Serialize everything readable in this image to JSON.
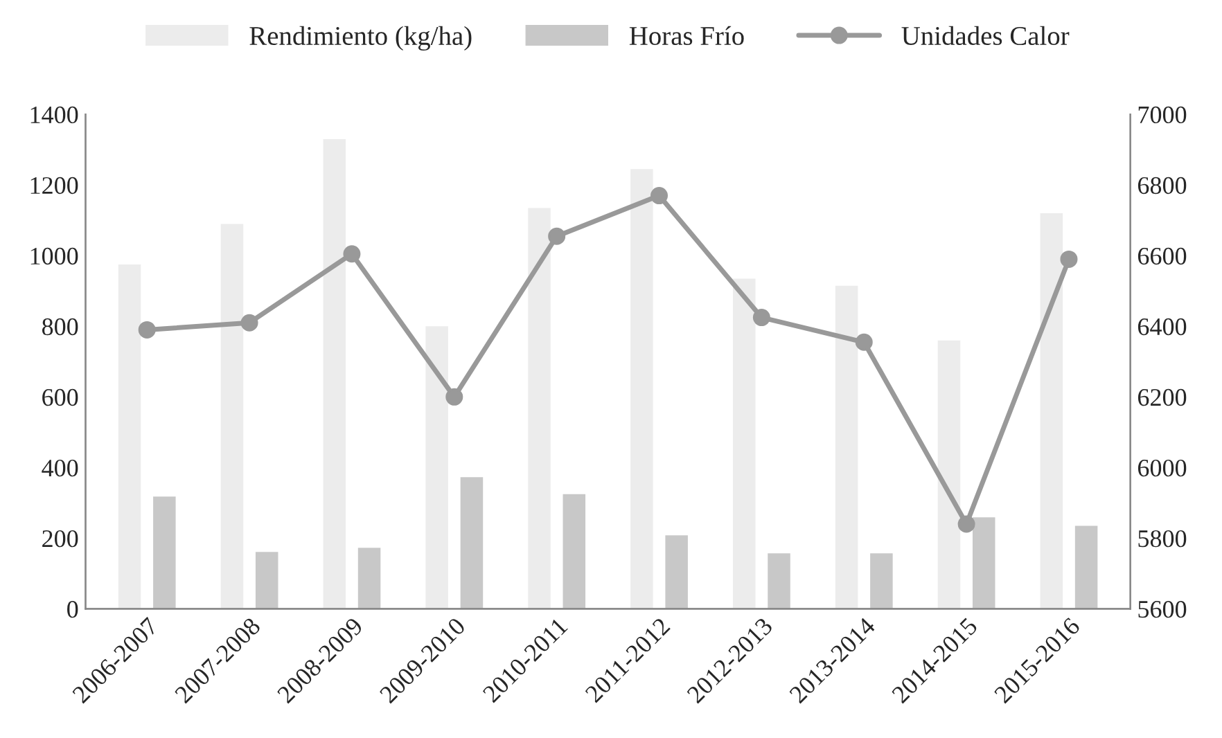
{
  "chart_data": {
    "type": "bar",
    "categories": [
      "2006-2007",
      "2007-2008",
      "2008-2009",
      "2009-2010",
      "2010-2011",
      "2011-2012",
      "2012-2013",
      "2013-2014",
      "2014-2015",
      "2015-2016"
    ],
    "series": [
      {
        "name": "Rendimiento (kg/ha)",
        "color": "#ececec",
        "values": [
          975,
          1090,
          1330,
          800,
          1135,
          1245,
          935,
          915,
          760,
          1120
        ]
      },
      {
        "name": "Horas Frío",
        "color": "#c8c8c8",
        "values": [
          318,
          161,
          173,
          373,
          325,
          208,
          157,
          157,
          259,
          235
        ]
      },
      {
        "name": "Unidades Calor",
        "type": "line",
        "axis": "y2",
        "color": "#999999",
        "values": [
          6390,
          6410,
          6605,
          6200,
          6655,
          6770,
          6425,
          6355,
          5840,
          6590
        ]
      }
    ],
    "ylim": [
      0,
      1400
    ],
    "yticks": [
      0,
      200,
      400,
      600,
      800,
      1000,
      1200,
      1400
    ],
    "y2lim": [
      5600,
      7000
    ],
    "y2ticks": [
      5600,
      5800,
      6000,
      6200,
      6400,
      6600,
      6800,
      7000
    ],
    "marker": "circle",
    "line_style": "solid",
    "legend": "top",
    "grid": false
  }
}
